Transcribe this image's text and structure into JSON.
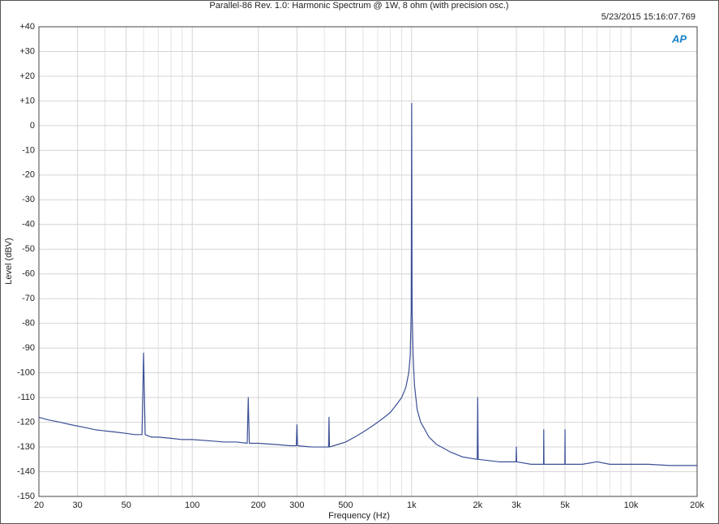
{
  "chart_data": {
    "type": "line",
    "title": "Parallel-86 Rev. 1.0: Harmonic Spectrum @ 1W, 8 ohm (with precision osc.)",
    "timestamp": "5/23/2015 15:16:07.769",
    "logo": "AP",
    "xlabel": "Frequency (Hz)",
    "ylabel": "Level (dBV)",
    "xscale": "log",
    "grid": true,
    "xlim": [
      20,
      20000
    ],
    "ylim": [
      -150,
      40
    ],
    "xticks": [
      20,
      30,
      50,
      100,
      200,
      300,
      500,
      {
        "value": 1000,
        "label": "1k"
      },
      {
        "value": 2000,
        "label": "2k"
      },
      {
        "value": 3000,
        "label": "3k"
      },
      {
        "value": 5000,
        "label": "5k"
      },
      {
        "value": 10000,
        "label": "10k"
      },
      {
        "value": 20000,
        "label": "20k"
      }
    ],
    "xminorticks": [
      40,
      60,
      70,
      80,
      90,
      400,
      600,
      700,
      800,
      900,
      4000,
      6000,
      7000,
      8000,
      9000
    ],
    "yticks": [
      {
        "value": 40,
        "label": "+40"
      },
      {
        "value": 30,
        "label": "+30"
      },
      {
        "value": 20,
        "label": "+20"
      },
      {
        "value": 10,
        "label": "+10"
      },
      0,
      -10,
      -20,
      -30,
      -40,
      -50,
      -60,
      -70,
      -80,
      -90,
      -100,
      -110,
      -120,
      -130,
      -140,
      -150
    ],
    "x": [
      20,
      22,
      25,
      28,
      32,
      36,
      40,
      45,
      50,
      55,
      59,
      60,
      61,
      65,
      70,
      80,
      90,
      100,
      120,
      140,
      160,
      178,
      180,
      182,
      200,
      240,
      280,
      298,
      300,
      302,
      350,
      400,
      418,
      420,
      422,
      460,
      500,
      550,
      600,
      650,
      700,
      750,
      800,
      850,
      900,
      940,
      970,
      985,
      995,
      1000,
      1005,
      1015,
      1030,
      1060,
      1100,
      1200,
      1300,
      1500,
      1700,
      1990,
      2000,
      2010,
      2500,
      2990,
      3000,
      3010,
      3500,
      3990,
      4000,
      4010,
      4990,
      5000,
      5010,
      6000,
      7000,
      8000,
      10000,
      12000,
      15000,
      20000
    ],
    "series": [
      {
        "name": "Level",
        "color": "#3b4f96",
        "values": [
          -118,
          -119,
          -120,
          -121,
          -122,
          -123,
          -123.5,
          -124,
          -124.5,
          -125,
          -125,
          -92,
          -125,
          -126,
          -126,
          -126.5,
          -127,
          -127,
          -127.5,
          -128,
          -128,
          -128.5,
          -110,
          -128.5,
          -128.5,
          -129,
          -129.5,
          -129.5,
          -121,
          -129.5,
          -130,
          -130,
          -130,
          -118,
          -130,
          -129,
          -128,
          -126,
          -124,
          -122,
          -120,
          -118,
          -116,
          -113,
          -110,
          -106,
          -100,
          -93,
          -75,
          9,
          -75,
          -93,
          -105,
          -115,
          -120,
          -126,
          -129,
          -132,
          -134,
          -135,
          -110,
          -135,
          -136,
          -136,
          -130,
          -136,
          -137,
          -137,
          -123,
          -137,
          -137,
          -123,
          -137,
          -137,
          -136,
          -137,
          -137,
          -137,
          -137.5,
          -137.5
        ]
      }
    ]
  }
}
